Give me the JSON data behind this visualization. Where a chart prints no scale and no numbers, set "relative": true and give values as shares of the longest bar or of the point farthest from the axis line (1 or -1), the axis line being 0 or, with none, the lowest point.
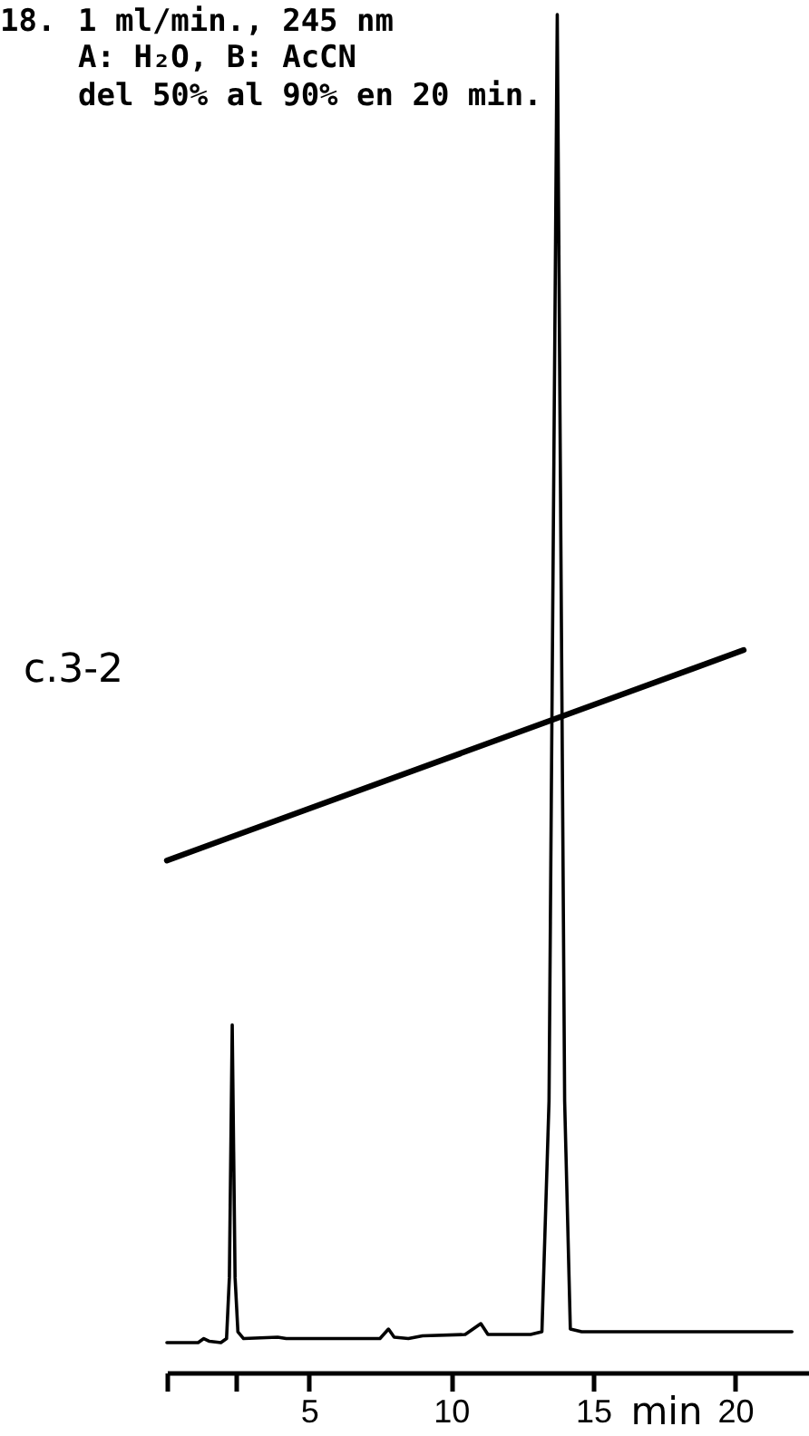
{
  "chart_data": {
    "type": "line",
    "xlabel": "min",
    "relative": true,
    "xlim": [
      0,
      22.6
    ],
    "xticks": [
      {
        "value": 0,
        "label": null
      },
      {
        "value": 2.4,
        "label": null
      },
      5,
      10,
      15,
      20
    ],
    "grid": false,
    "annotations": [
      "18.",
      "1 ml/min., 245 nm",
      "A: H₂O, B: AcCN",
      "del 50% al 90% en 20 min.",
      "c.3-2"
    ],
    "series": [
      {
        "color": "#000000",
        "x": [
          0,
          0.5,
          1.1,
          1.3,
          1.5,
          1.9,
          2.1,
          2.2,
          2.3,
          2.4,
          2.5,
          2.7,
          3.9,
          4.2,
          7.5,
          7.8,
          8.0,
          8.5,
          9.0,
          10.5,
          11.05,
          11.3,
          12.8,
          13.2,
          13.45,
          13.74,
          14.0,
          14.2,
          14.6,
          22.0
        ],
        "values": [
          0.022,
          0.022,
          0.022,
          0.025,
          0.023,
          0.022,
          0.025,
          0.07,
          0.256,
          0.07,
          0.03,
          0.025,
          0.026,
          0.025,
          0.025,
          0.032,
          0.026,
          0.025,
          0.027,
          0.028,
          0.036,
          0.028,
          0.028,
          0.03,
          0.2,
          1,
          0.2,
          0.032,
          0.03,
          0.03
        ]
      },
      {
        "color": "#000000",
        "x": [
          0,
          20.3
        ],
        "values": [
          0.377,
          0.532
        ]
      }
    ]
  }
}
